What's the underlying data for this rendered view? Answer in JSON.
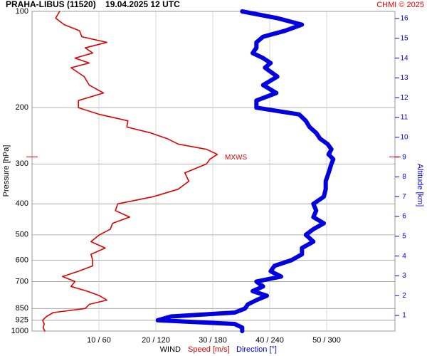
{
  "chart_data": {
    "type": "line",
    "title": "PRAHA-LIBUS (11520)    19.04.2025 12 UTC",
    "credit": "CHMI © 2025",
    "ylabel": "Pressure [hPa]",
    "y2label": "Altitude [km]",
    "xlabel": "WIND",
    "log_y": true,
    "grid": true,
    "pressure": [
      100,
      105,
      110,
      115,
      120,
      125,
      130,
      135,
      140,
      145,
      150,
      160,
      170,
      180,
      190,
      200,
      210,
      220,
      230,
      240,
      250,
      260,
      270,
      280,
      290,
      300,
      320,
      340,
      360,
      380,
      400,
      420,
      440,
      460,
      480,
      500,
      525,
      550,
      575,
      600,
      625,
      650,
      675,
      700,
      725,
      750,
      775,
      800,
      825,
      850,
      875,
      900,
      925,
      950,
      975,
      1000
    ],
    "series": [
      {
        "name": "Speed [m/s]",
        "color": "#e00000",
        "axis": "x",
        "values": [
          3.1,
          2.4,
          3.9,
          6.6,
          7,
          11.4,
          7.6,
          8.9,
          5.8,
          8.3,
          5.1,
          7.4,
          8.3,
          10.8,
          6.4,
          6.4,
          10.1,
          15.1,
          14.9,
          19.1,
          22,
          23.9,
          28.9,
          30.8,
          29.5,
          28.9,
          25.1,
          25.8,
          23.9,
          19.5,
          13.3,
          12.9,
          15.4,
          12.4,
          12,
          10.1,
          8.6,
          11.1,
          8.6,
          8.9,
          8.9,
          6.4,
          3.6,
          5.8,
          5.1,
          7.9,
          10.1,
          11.4,
          8.3,
          7.6,
          2,
          0.8,
          0.1,
          0.4,
          0.2,
          0.5
        ]
      },
      {
        "name": "Direction [°]",
        "color": "#0000e0",
        "axis": "x2",
        "values": [
          211,
          248,
          274,
          256,
          233,
          226,
          226,
          222,
          233,
          241,
          235,
          248,
          233,
          247,
          226,
          226,
          271,
          278,
          282,
          289,
          293,
          301,
          305,
          302,
          307,
          305,
          302,
          299,
          299,
          297,
          286,
          289,
          286,
          297,
          286,
          278,
          286,
          274,
          274,
          263,
          245,
          241,
          252,
          226,
          233,
          222,
          237,
          226,
          217,
          214,
          203,
          136,
          122,
          203,
          211,
          211
        ]
      }
    ],
    "xlim": [
      -1.75,
      62
    ],
    "x2lim": [
      -10.5,
      372
    ],
    "xticks": [
      {
        "value": 10,
        "label": "10 / 60"
      },
      {
        "value": 20,
        "label": "20 / 120"
      },
      {
        "value": 30,
        "label": "30 / 180"
      },
      {
        "value": 40,
        "label": "40 / 240"
      },
      {
        "value": 50,
        "label": "50 / 300"
      }
    ],
    "ylim": [
      100,
      1000
    ],
    "yticks": [
      100,
      200,
      300,
      400,
      500,
      600,
      700,
      850,
      925,
      1000
    ],
    "y2lim": [
      16.36,
      0.21
    ],
    "y2ticks": [
      1,
      2,
      3,
      4,
      5,
      6,
      7,
      8,
      9,
      10,
      11,
      12,
      13,
      14,
      15,
      16
    ],
    "annotation": {
      "label": "MXWS",
      "pressure": 285
    }
  }
}
